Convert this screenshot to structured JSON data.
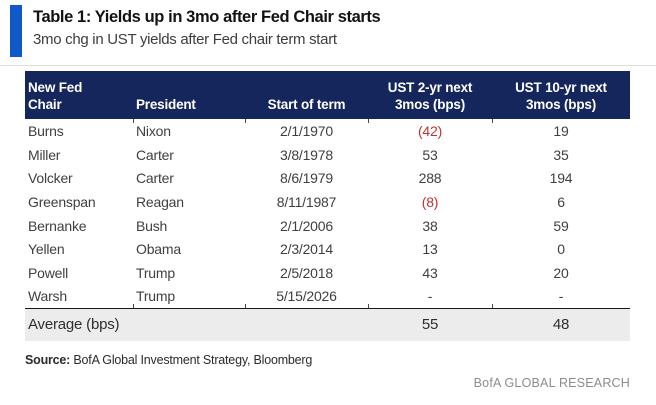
{
  "colors": {
    "accent-blue": "#1158c9",
    "header-navy": "#14265c",
    "negative-red": "#bf3430",
    "body-text": "#3f3f3f",
    "average-bg": "#ececec",
    "brand-gray": "#8c8c8c"
  },
  "header": {
    "title": "Table 1: Yields up in 3mo after Fed Chair starts",
    "subtitle": "3mo chg in UST yields after Fed chair term start"
  },
  "table": {
    "columns": [
      {
        "line1": "New Fed",
        "line2": "Chair"
      },
      {
        "line1": "President",
        "line2": ""
      },
      {
        "line1": "Start of term",
        "line2": ""
      },
      {
        "line1": "UST 2-yr next",
        "line2": "3mos (bps)"
      },
      {
        "line1": "UST 10-yr next",
        "line2": "3mos (bps)"
      }
    ],
    "rows": [
      {
        "chair": "Burns",
        "president": "Nixon",
        "start": "2/1/1970",
        "ust2": "(42)",
        "ust10": "19"
      },
      {
        "chair": "Miller",
        "president": "Carter",
        "start": "3/8/1978",
        "ust2": "53",
        "ust10": "35"
      },
      {
        "chair": "Volcker",
        "president": "Carter",
        "start": "8/6/1979",
        "ust2": "288",
        "ust10": "194"
      },
      {
        "chair": "Greenspan",
        "president": "Reagan",
        "start": "8/11/1987",
        "ust2": "(8)",
        "ust10": "6"
      },
      {
        "chair": "Bernanke",
        "president": "Bush",
        "start": "2/1/2006",
        "ust2": "38",
        "ust10": "59"
      },
      {
        "chair": "Yellen",
        "president": "Obama",
        "start": "2/3/2014",
        "ust2": "13",
        "ust10": "0"
      },
      {
        "chair": "Powell",
        "president": "Trump",
        "start": "2/5/2018",
        "ust2": "43",
        "ust10": "20"
      },
      {
        "chair": "Warsh",
        "president": "Trump",
        "start": "5/15/2026",
        "ust2": "-",
        "ust10": "-"
      }
    ],
    "average": {
      "label": "Average (bps)",
      "ust2": "55",
      "ust10": "48"
    }
  },
  "footer": {
    "source_label": "Source:",
    "source_text": " BofA Global Investment Strategy, Bloomberg",
    "brand": "BofA GLOBAL RESEARCH"
  },
  "chart_data": {
    "type": "table",
    "title": "Table 1: Yields up in 3mo after Fed Chair starts",
    "subtitle": "3mo chg in UST yields after Fed chair term start",
    "columns": [
      "New Fed Chair",
      "President",
      "Start of term",
      "UST 2-yr next 3mos (bps)",
      "UST 10-yr next 3mos (bps)"
    ],
    "rows": [
      [
        "Burns",
        "Nixon",
        "2/1/1970",
        -42,
        19
      ],
      [
        "Miller",
        "Carter",
        "3/8/1978",
        53,
        35
      ],
      [
        "Volcker",
        "Carter",
        "8/6/1979",
        288,
        194
      ],
      [
        "Greenspan",
        "Reagan",
        "8/11/1987",
        -8,
        6
      ],
      [
        "Bernanke",
        "Bush",
        "2/1/2006",
        38,
        59
      ],
      [
        "Yellen",
        "Obama",
        "2/3/2014",
        13,
        0
      ],
      [
        "Powell",
        "Trump",
        "2/5/2018",
        43,
        20
      ],
      [
        "Warsh",
        "Trump",
        "5/15/2026",
        null,
        null
      ]
    ],
    "average_row": {
      "label": "Average (bps)",
      "ust2_bps": 55,
      "ust10_bps": 48
    },
    "notes": "Negative values shown in red parentheses; dashes for not-yet-started term",
    "source": "BofA Global Investment Strategy, Bloomberg"
  }
}
